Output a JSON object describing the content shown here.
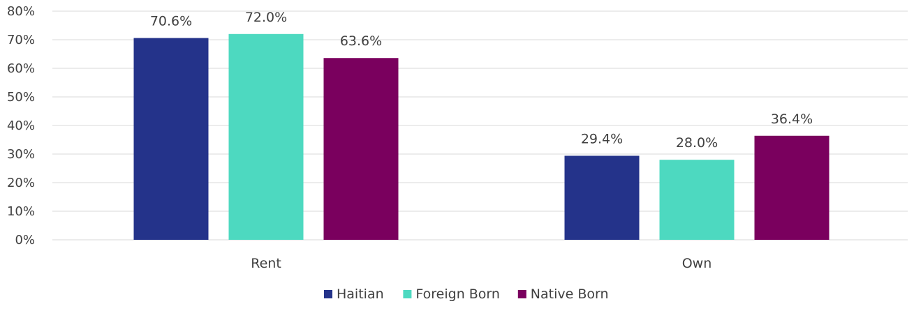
{
  "chart_data": {
    "type": "bar",
    "categories": [
      "Rent",
      "Own"
    ],
    "series": [
      {
        "name": "Haitian",
        "values": [
          70.6,
          29.4
        ],
        "labels": [
          "70.6%",
          "29.4%"
        ],
        "color": "#24338A"
      },
      {
        "name": "Foreign Born",
        "values": [
          72.0,
          28.0
        ],
        "labels": [
          "72.0%",
          "28.0%"
        ],
        "color": "#4DD9C0"
      },
      {
        "name": "Native Born",
        "values": [
          63.6,
          36.4
        ],
        "labels": [
          "63.6%",
          "36.4%"
        ],
        "color": "#7A005E"
      }
    ],
    "ylim": [
      0,
      80
    ],
    "yticks": [
      0,
      10,
      20,
      30,
      40,
      50,
      60,
      70,
      80
    ],
    "ytick_labels": [
      "0%",
      "10%",
      "20%",
      "30%",
      "40%",
      "50%",
      "60%",
      "70%",
      "80%"
    ],
    "grid": true,
    "legend_position": "bottom",
    "gridline_color": "#d9d9d9"
  }
}
